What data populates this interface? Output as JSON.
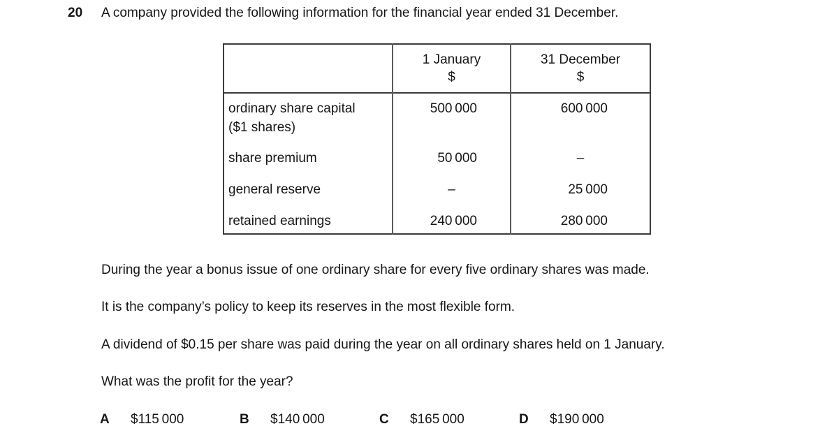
{
  "question": {
    "number": "20",
    "text": "A company provided the following information for the financial year ended 31 December."
  },
  "table": {
    "columns": [
      {
        "label": "1 January",
        "unit": "$"
      },
      {
        "label": "31 December",
        "unit": "$"
      }
    ],
    "rows": [
      {
        "label": "ordinary share capital\n($1 shares)",
        "jan": "500 000",
        "dec": "600 000"
      },
      {
        "label": "share premium",
        "jan": "50 000",
        "dec": "–"
      },
      {
        "label": "general reserve",
        "jan": "–",
        "dec": "25 000"
      },
      {
        "label": "retained earnings",
        "jan": "240 000",
        "dec": "280 000"
      }
    ]
  },
  "paragraphs": {
    "bonus_issue": "During the year a bonus issue of one ordinary share for every five ordinary shares was made.",
    "policy": "It is the company’s policy to keep its reserves in the most flexible form.",
    "dividend": "A dividend of $0.15 per share was paid during the year on all ordinary shares held on 1 January.",
    "question_prompt": "What was the profit for the year?"
  },
  "options": [
    {
      "letter": "A",
      "value": "$115 000"
    },
    {
      "letter": "B",
      "value": "$140 000"
    },
    {
      "letter": "C",
      "value": "$165 000"
    },
    {
      "letter": "D",
      "value": "$190 000"
    }
  ],
  "colors": {
    "text": "#161616",
    "background": "#ffffff",
    "table_border": "#3c3c3c"
  }
}
